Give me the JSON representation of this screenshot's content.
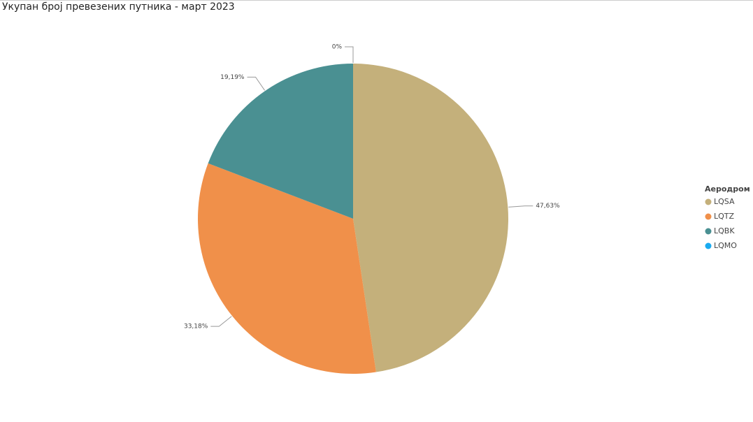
{
  "chart_data": {
    "type": "pie",
    "title": "Укупан број превезених путника - март 2023",
    "legend_title": "Аеродром",
    "categories": [
      "LQSA",
      "LQTZ",
      "LQBK",
      "LQMO"
    ],
    "values": [
      47.63,
      33.18,
      19.19,
      0
    ],
    "value_labels": [
      "47,63%",
      "33,18%",
      "19,19%",
      "0%"
    ],
    "colors": [
      "#c4b07b",
      "#f0904a",
      "#4a9092",
      "#1aabf0"
    ],
    "legend": "right"
  }
}
